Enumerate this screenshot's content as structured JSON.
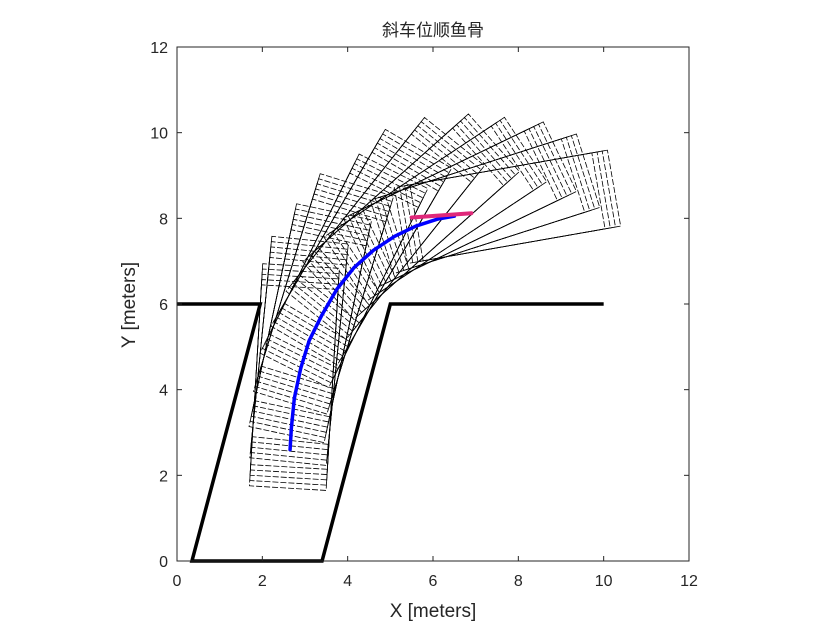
{
  "chart_data": {
    "type": "line",
    "title": "斜车位顺鱼骨",
    "xlabel": "X [meters]",
    "ylabel": "Y [meters]",
    "xlim": [
      0,
      12
    ],
    "ylim": [
      0,
      12
    ],
    "xticks": [
      "0",
      "2",
      "4",
      "6",
      "8",
      "10",
      "12"
    ],
    "yticks": [
      "0",
      "2",
      "4",
      "6",
      "8",
      "10",
      "12"
    ],
    "grid": false,
    "legend": "none",
    "colors": {
      "boundary": "#000000",
      "footprint": "#000000",
      "path": "#0000ff",
      "start": "#e0287a"
    },
    "series": [
      {
        "name": "parking-slot-boundary",
        "style": "thick-black",
        "segments": [
          [
            [
              0.0,
              6.0
            ],
            [
              1.95,
              6.0
            ],
            [
              0.35,
              0.0
            ],
            [
              3.4,
              0.0
            ],
            [
              5.0,
              6.0
            ],
            [
              10.0,
              6.0
            ]
          ]
        ]
      },
      {
        "name": "vehicle-path",
        "style": "thick-blue",
        "x": [
          6.5,
          6.1,
          5.6,
          5.1,
          4.6,
          4.15,
          3.75,
          3.4,
          3.1,
          2.9,
          2.75,
          2.68,
          2.65
        ],
        "y": [
          8.05,
          7.98,
          7.82,
          7.58,
          7.25,
          6.85,
          6.35,
          5.75,
          5.15,
          4.5,
          3.8,
          3.1,
          2.6
        ]
      },
      {
        "name": "start-pose-marker",
        "style": "red",
        "x": [
          5.5,
          6.9
        ],
        "y": [
          8.02,
          8.12
        ]
      },
      {
        "name": "vehicle-footprints",
        "style": "thin-dashed-black",
        "count": 60,
        "vehicle_length": 4.7,
        "vehicle_width": 1.8,
        "rear_overhang": 0.9
      }
    ]
  }
}
